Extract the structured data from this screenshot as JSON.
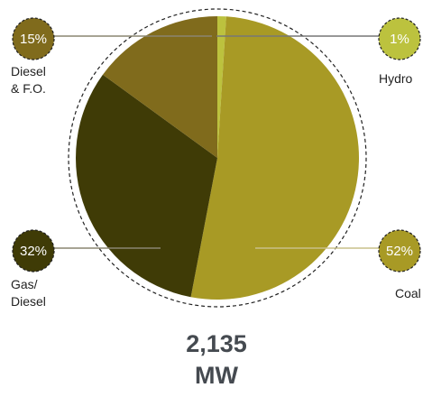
{
  "chart_data": {
    "type": "pie",
    "categories": [
      "Hydro",
      "Coal",
      "Gas/\nDiesel",
      "Diesel\n& F.O."
    ],
    "values": [
      1,
      52,
      32,
      15
    ],
    "value_labels": [
      "1%",
      "52%",
      "32%",
      "15%"
    ],
    "colors": [
      "#bcc23e",
      "#a89a25",
      "#3f3b06",
      "#806b1c"
    ],
    "total": "2,135 MW"
  }
}
